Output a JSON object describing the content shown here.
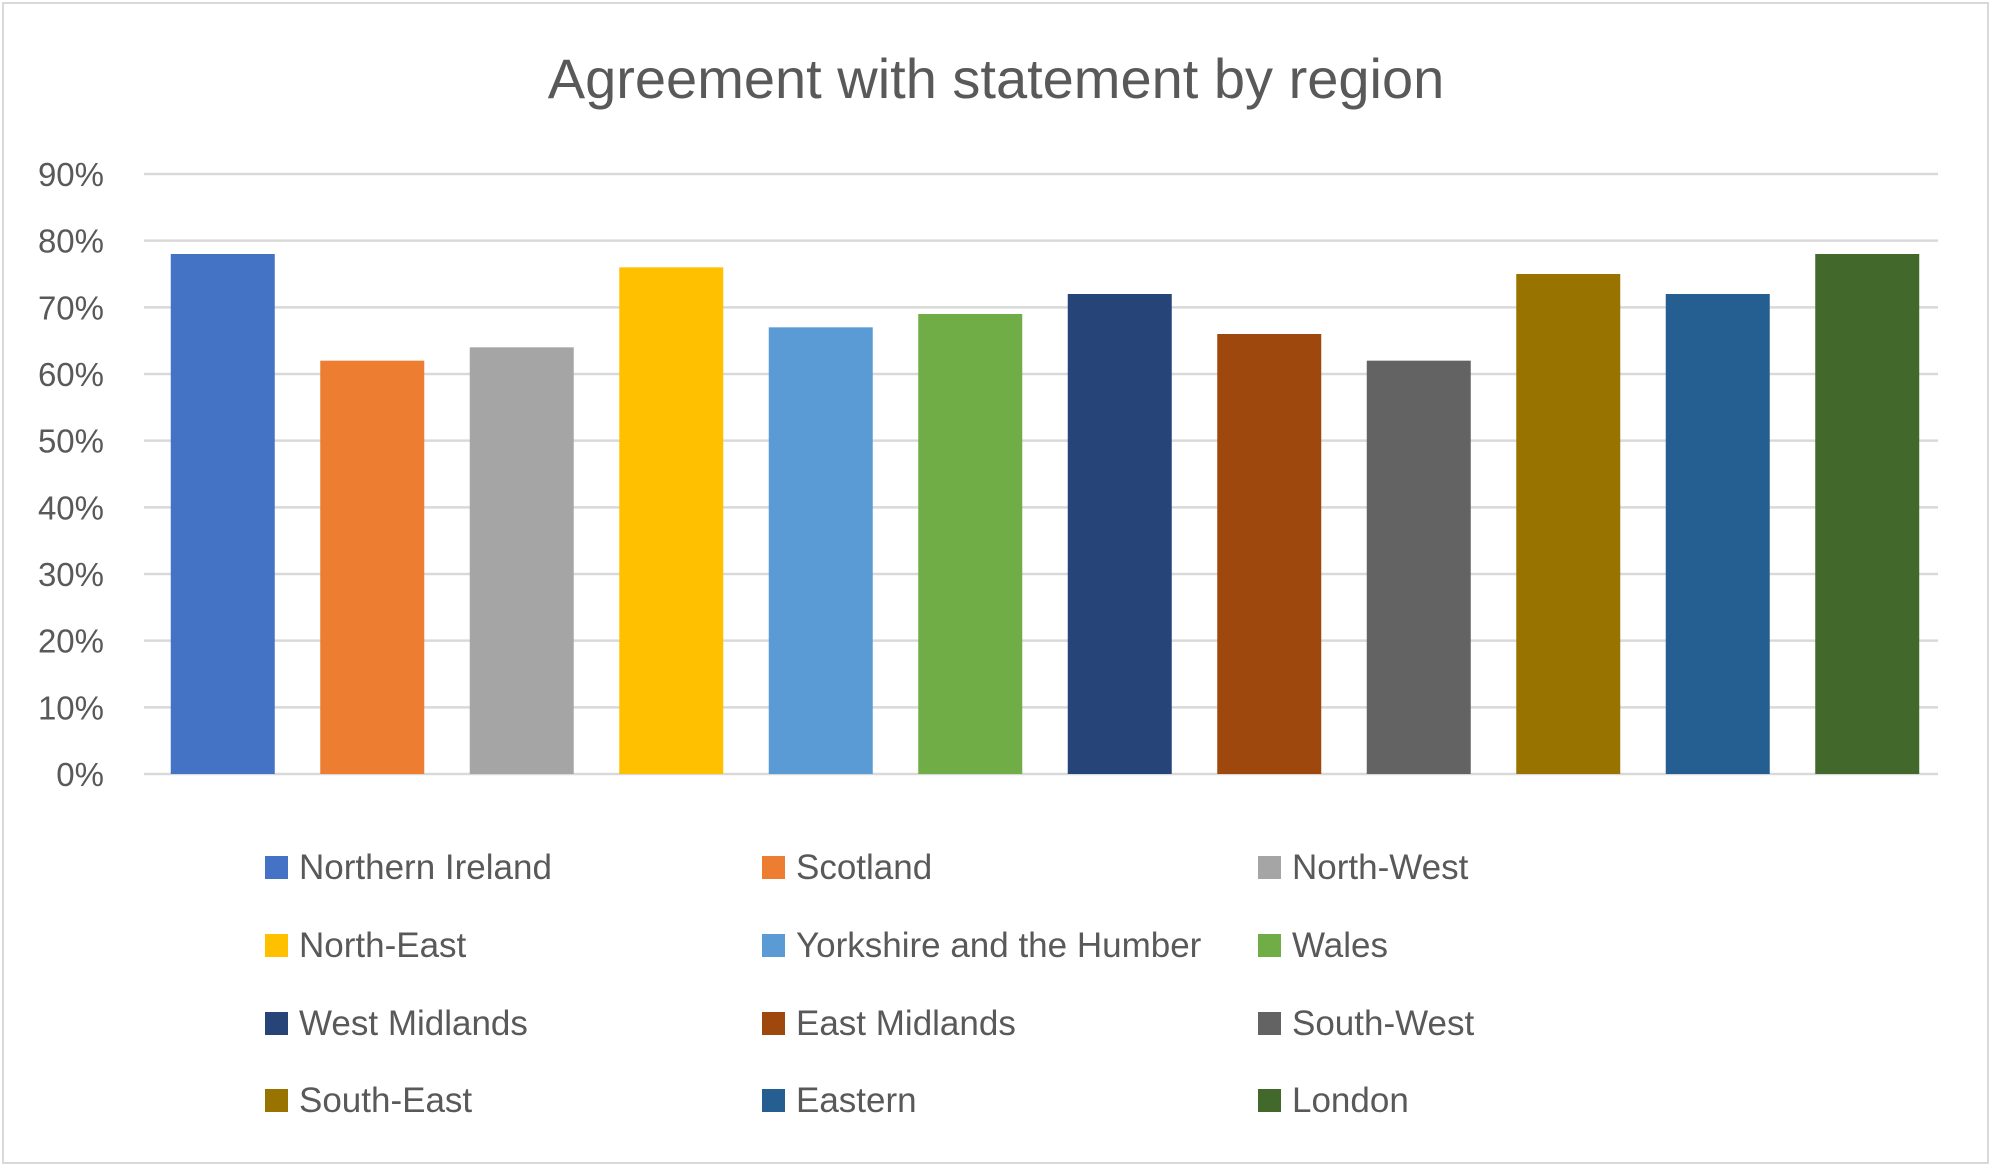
{
  "chart_data": {
    "type": "bar",
    "title": "Agreement with statement by region",
    "xlabel": "",
    "ylabel": "",
    "ylim": [
      0,
      90
    ],
    "y_tick_labels": [
      "0%",
      "10%",
      "20%",
      "30%",
      "40%",
      "50%",
      "60%",
      "70%",
      "80%",
      "90%"
    ],
    "grid": true,
    "legend_placement": "bottom",
    "categories": [
      "Northern Ireland",
      "Scotland",
      "North-West",
      "North-East",
      "Yorkshire and the Humber",
      "Wales",
      "West Midlands",
      "East Midlands",
      "South-West",
      "South-East",
      "Eastern",
      "London"
    ],
    "values": [
      78,
      62,
      64,
      76,
      67,
      69,
      72,
      66,
      62,
      75,
      72,
      78
    ],
    "colors": [
      "#4472c4",
      "#ed7d31",
      "#a5a5a5",
      "#ffc000",
      "#5b9bd5",
      "#70ad47",
      "#264478",
      "#9e480e",
      "#636363",
      "#997300",
      "#255e91",
      "#43682b"
    ]
  }
}
